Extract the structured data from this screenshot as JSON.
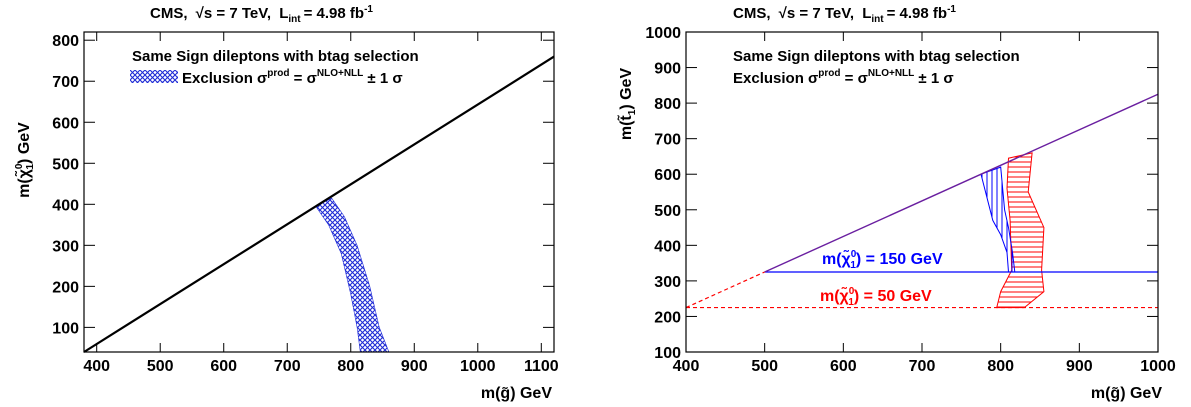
{
  "header": {
    "cms": "CMS,",
    "sqrt_s": "√s = 7 TeV,",
    "lumi_L": "L",
    "lumi_sub": "int",
    "lumi_val": "= 4.98 fb",
    "lumi_sup": "-1"
  },
  "colors": {
    "band_left": "#1f2bd6",
    "band_right_blue": "#0000ff",
    "band_right_red": "#ff0000",
    "diagonal_right": "#6a1fa0",
    "axis": "#000000"
  },
  "chart_data": [
    {
      "type": "area",
      "title": "Same Sign dileptons with btag selection",
      "legend": {
        "label_prefix": "Exclusion σ",
        "label_sup1": "prod",
        "label_mid": " = σ",
        "label_sup2": "NLO+NLL",
        "label_suffix": " ± 1 σ",
        "placement": "top-left"
      },
      "xlabel": "m(g̃) GeV",
      "ylabel": "m(χ̃",
      "ylabel_sup": "0",
      "ylabel_sub": "1",
      "ylabel_suffix": ") GeV",
      "xlim": [
        380,
        1120
      ],
      "ylim": [
        40,
        820
      ],
      "xticks": [
        400,
        500,
        600,
        700,
        800,
        900,
        1000,
        1100
      ],
      "yticks": [
        100,
        200,
        300,
        400,
        500,
        600,
        700,
        800
      ],
      "kinematic_line": [
        [
          380,
          40
        ],
        [
          1120,
          760
        ]
      ],
      "exclusion_band": {
        "outer": [
          [
            770,
            415
          ],
          [
            790,
            370
          ],
          [
            810,
            300
          ],
          [
            830,
            200
          ],
          [
            845,
            100
          ],
          [
            860,
            40
          ]
        ],
        "inner": [
          [
            745,
            395
          ],
          [
            765,
            350
          ],
          [
            785,
            280
          ],
          [
            800,
            180
          ],
          [
            810,
            100
          ],
          [
            815,
            40
          ]
        ]
      }
    },
    {
      "type": "area",
      "title": "Same Sign dileptons with btag selection",
      "legend": {
        "label_prefix": "Exclusion σ",
        "label_sup1": "prod",
        "label_mid": " = σ",
        "label_sup2": "NLO+NLL",
        "label_suffix": " ± 1 σ",
        "placement": "top-left"
      },
      "xlabel": "m(g̃) GeV",
      "ylabel": "m(t̃",
      "ylabel_sub": "1",
      "ylabel_suffix": ") GeV",
      "xlim": [
        400,
        1000
      ],
      "ylim": [
        100,
        1000
      ],
      "xticks": [
        400,
        500,
        600,
        700,
        800,
        900,
        1000
      ],
      "yticks": [
        100,
        200,
        300,
        400,
        500,
        600,
        700,
        800,
        900,
        1000
      ],
      "series": [
        {
          "name_prefix": "m(χ̃",
          "name_sup": "0",
          "name_sub": "1",
          "name_suffix": ") = 150 GeV",
          "color": "blue",
          "threshold": 325,
          "band_outer": [
            [
              775,
              600
            ],
            [
              790,
              470
            ],
            [
              800,
              430
            ],
            [
              808,
              380
            ],
            [
              810,
              325
            ]
          ],
          "band_inner": [
            [
              800,
              620
            ],
            [
              805,
              500
            ],
            [
              810,
              450
            ],
            [
              815,
              380
            ],
            [
              818,
              325
            ]
          ]
        },
        {
          "name_prefix": "m(χ̃",
          "name_sup": "0",
          "name_sub": "1",
          "name_suffix": ") = 50 GeV",
          "color": "red",
          "threshold": 225,
          "band_outer": [
            [
              840,
              660
            ],
            [
              835,
              550
            ],
            [
              855,
              450
            ],
            [
              852,
              330
            ],
            [
              855,
              270
            ],
            [
              830,
              225
            ]
          ],
          "band_inner": [
            [
              810,
              645
            ],
            [
              808,
              560
            ],
            [
              812,
              470
            ],
            [
              814,
              330
            ],
            [
              800,
              270
            ],
            [
              795,
              225
            ]
          ]
        }
      ],
      "kinematic_line": [
        [
          400,
          225
        ],
        [
          500,
          325
        ],
        [
          1000,
          825
        ]
      ]
    }
  ]
}
